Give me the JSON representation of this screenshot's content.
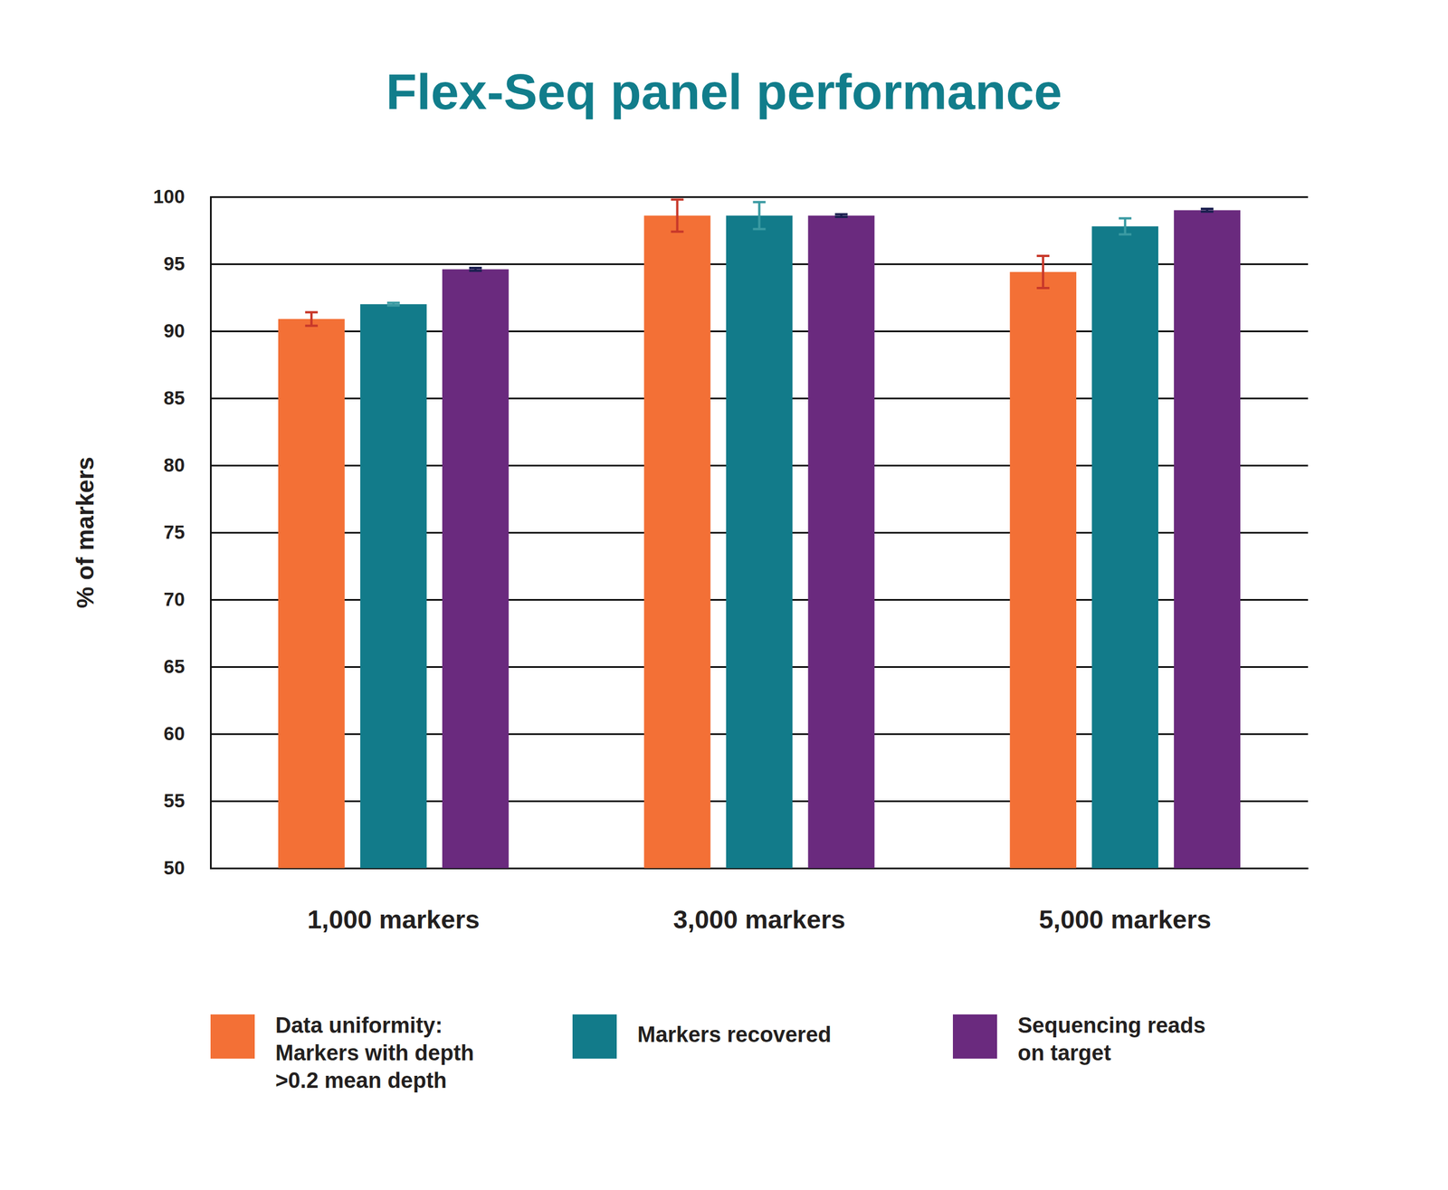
{
  "chart_data": {
    "type": "bar",
    "title": "Flex-Seq panel performance",
    "ylabel": "% of markers",
    "categories": [
      "1,000 markers",
      "3,000 markers",
      "5,000 markers"
    ],
    "series": [
      {
        "name": "Data uniformity: Markers with depth >0.2 mean depth",
        "color": "#f37036",
        "values": [
          90.9,
          98.6,
          94.4
        ],
        "errors": [
          0.5,
          1.2,
          1.2
        ]
      },
      {
        "name": "Markers recovered",
        "color": "#127b8a",
        "values": [
          92.0,
          98.6,
          97.8
        ],
        "errors": [
          0.1,
          1.0,
          0.6
        ]
      },
      {
        "name": "Sequencing reads on target",
        "color": "#6a2a7e",
        "values": [
          94.6,
          98.6,
          99.0
        ],
        "errors": [
          0.1,
          0.1,
          0.1
        ]
      }
    ],
    "ylim": [
      50,
      100
    ],
    "yticks": [
      50,
      55,
      60,
      65,
      70,
      75,
      80,
      85,
      90,
      95,
      100
    ],
    "grid": true,
    "legend": "bottom"
  }
}
